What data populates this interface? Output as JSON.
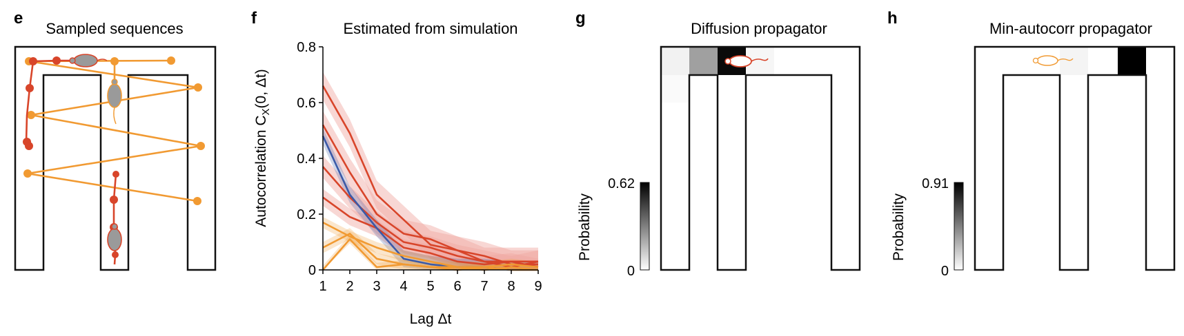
{
  "colors": {
    "red": "#d8452a",
    "orange": "#f19a32",
    "blue": "#3b5aa8",
    "band": "#f0a7a0",
    "mouse_body": "#9a9a9a"
  },
  "panels": {
    "e": {
      "letter": "e",
      "title": "Sampled sequences"
    },
    "f": {
      "letter": "f",
      "title": "Estimated from simulation"
    },
    "g": {
      "letter": "g",
      "title": "Diffusion propagator",
      "colorbar_label": "Probability",
      "cb_max": "0.62",
      "cb_min": "0",
      "cells": [
        0.04,
        0.38,
        1.0,
        0.02
      ]
    },
    "h": {
      "letter": "h",
      "title": "Min-autocorr propagator",
      "colorbar_label": "Probability",
      "cb_max": "0.91",
      "cb_min": "0",
      "cells": [
        0.06,
        0.0,
        1.0
      ]
    }
  },
  "chart_data": {
    "type": "line",
    "title": "Estimated from simulation",
    "xlabel": "Lag Δt",
    "ylabel_main": "Autocorrelation C",
    "ylabel_sub": "X",
    "ylabel_args": "(0, Δt)",
    "x": [
      1,
      2,
      3,
      4,
      5,
      6,
      7,
      8,
      9
    ],
    "xlim": [
      1,
      9
    ],
    "ylim": [
      0,
      0.8
    ],
    "xticks": [
      "1",
      "2",
      "3",
      "4",
      "5",
      "6",
      "7",
      "8",
      "9"
    ],
    "yticks": [
      "0",
      "0.2",
      "0.4",
      "0.6",
      "0.8"
    ],
    "ytick_values": [
      0,
      0.2,
      0.4,
      0.6,
      0.8
    ],
    "series": [
      {
        "name": "red-1",
        "color": "red",
        "values": [
          0.66,
          0.49,
          0.27,
          0.18,
          0.09,
          0.07,
          0.05,
          0.02,
          0.02
        ],
        "band": 0.05
      },
      {
        "name": "red-2",
        "color": "red",
        "values": [
          0.52,
          0.35,
          0.2,
          0.13,
          0.11,
          0.07,
          0.03,
          0.03,
          0.03
        ],
        "band": 0.05
      },
      {
        "name": "red-3",
        "color": "red",
        "values": [
          0.37,
          0.26,
          0.17,
          0.1,
          0.08,
          0.05,
          0.03,
          0.01,
          0.03
        ],
        "band": 0.04
      },
      {
        "name": "red-4",
        "color": "red",
        "values": [
          0.26,
          0.19,
          0.15,
          0.08,
          0.06,
          0.03,
          0.02,
          0.03,
          0.01
        ],
        "band": 0.03
      },
      {
        "name": "blue",
        "color": "blue",
        "values": [
          0.48,
          0.27,
          0.15,
          0.04,
          0.02,
          0.01,
          0.01,
          0.0,
          0.0
        ],
        "band": 0.03
      },
      {
        "name": "orange-1",
        "color": "orange",
        "values": [
          0.17,
          0.12,
          0.08,
          0.05,
          0.03,
          0.01,
          0.01,
          0.02,
          0.01
        ],
        "band": 0.02
      },
      {
        "name": "orange-2",
        "color": "orange",
        "values": [
          0.08,
          0.13,
          0.04,
          0.02,
          0.01,
          0.01,
          0.0,
          0.01,
          0.0
        ],
        "band": 0.02
      },
      {
        "name": "orange-3",
        "color": "orange",
        "values": [
          0.0,
          0.11,
          0.01,
          0.02,
          0.01,
          0.0,
          0.01,
          0.0,
          0.0
        ],
        "band": 0.015
      }
    ]
  }
}
